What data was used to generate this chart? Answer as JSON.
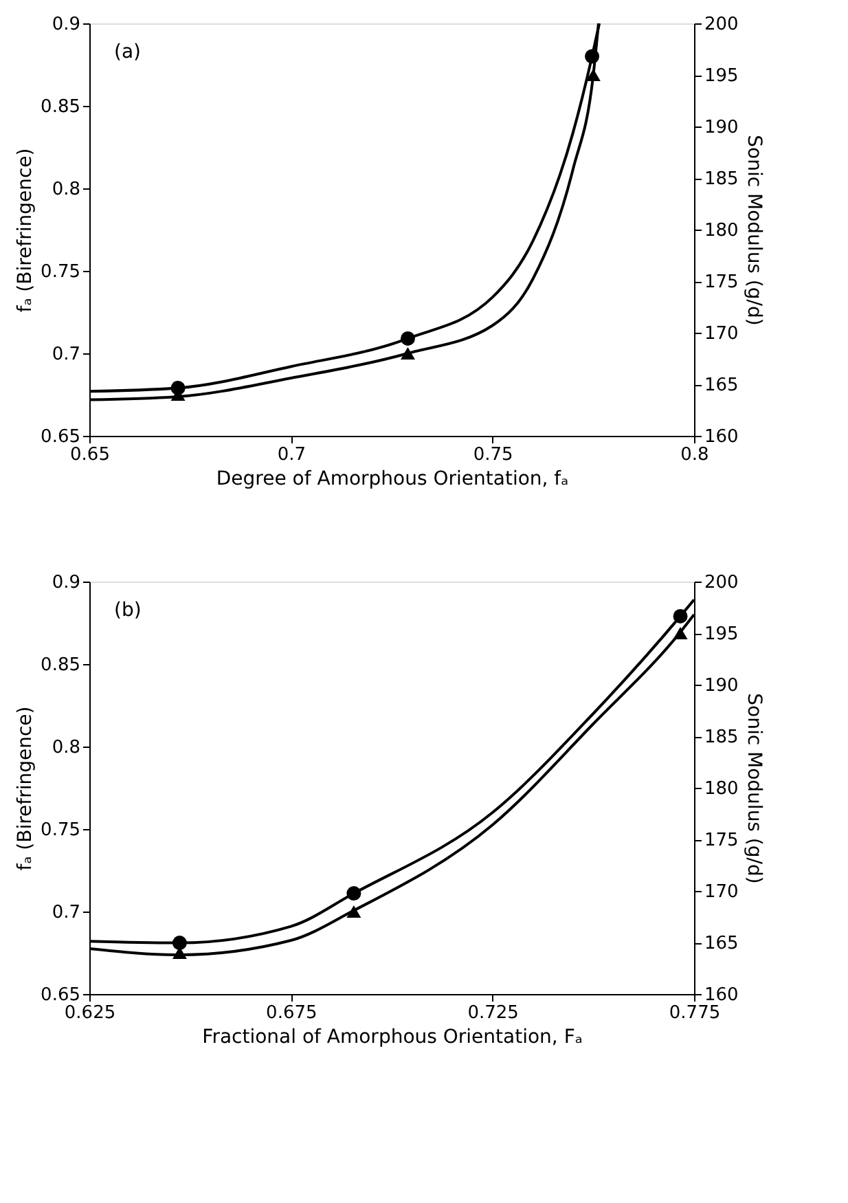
{
  "chart_data": [
    {
      "type": "line",
      "xlabel": "Degree of Amorphous Orientation, fₐ",
      "ylabel": "fₐ (Birefringence)",
      "y2label": "Sonic Modulus (g/d)",
      "annotations": [
        "(a)"
      ],
      "xlim": [
        0.65,
        0.8
      ],
      "xticks": [
        0.65,
        0.7,
        0.75,
        0.8
      ],
      "ylim": [
        0.65,
        0.9
      ],
      "yticks": [
        0.65,
        0.7,
        0.75,
        0.8,
        0.85,
        0.9
      ],
      "y2lim": [
        160,
        200
      ],
      "y2ticks": [
        160,
        165,
        170,
        175,
        180,
        185,
        190,
        195,
        200
      ],
      "grid": false,
      "series": [
        {
          "color": "#000000",
          "marker": "none",
          "x": [
            0.65,
            0.672,
            0.7,
            0.729,
            0.75,
            0.76,
            0.77,
            0.7747,
            0.7765
          ],
          "values": [
            0.677,
            0.679,
            0.692,
            0.709,
            0.734,
            0.768,
            0.834,
            0.88,
            0.9
          ]
        },
        {
          "axis": "y2",
          "color": "#000000",
          "marker": "none",
          "x": [
            0.65,
            0.672,
            0.7,
            0.729,
            0.75,
            0.76,
            0.77,
            0.775,
            0.7763
          ],
          "values": [
            163.5,
            163.8,
            165.6,
            168,
            170.7,
            175.2,
            185.9,
            195,
            200
          ]
        },
        {
          "type": "scatter",
          "color": "#000000",
          "marker": "circle",
          "x": [
            0.672,
            0.729,
            0.7747
          ],
          "values": [
            0.679,
            0.709,
            0.88
          ]
        },
        {
          "type": "scatter",
          "axis": "y2",
          "color": "#000000",
          "marker": "triangle",
          "x": [
            0.672,
            0.729,
            0.775
          ],
          "values": [
            164,
            168,
            195
          ]
        }
      ]
    },
    {
      "type": "line",
      "xlabel": "Fractional of Amorphous Orientation, Fₐ",
      "ylabel": "fₐ (Birefringence)",
      "y2label": "Sonic Modulus (g/d)",
      "annotations": [
        "(b)"
      ],
      "xlim": [
        0.625,
        0.775
      ],
      "xticks": [
        0.625,
        0.675,
        0.725,
        0.775
      ],
      "ylim": [
        0.65,
        0.9
      ],
      "yticks": [
        0.65,
        0.7,
        0.75,
        0.8,
        0.85,
        0.9
      ],
      "y2lim": [
        160,
        200
      ],
      "y2ticks": [
        160,
        165,
        170,
        175,
        180,
        185,
        190,
        195,
        200
      ],
      "grid": false,
      "series": [
        {
          "color": "#000000",
          "marker": "none",
          "x": [
            0.625,
            0.6474,
            0.675,
            0.6906,
            0.725,
            0.75,
            0.7716,
            0.775
          ],
          "values": [
            0.682,
            0.681,
            0.691,
            0.711,
            0.76,
            0.82,
            0.879,
            0.889
          ]
        },
        {
          "axis": "y2",
          "color": "#000000",
          "marker": "none",
          "x": [
            0.625,
            0.6474,
            0.675,
            0.6906,
            0.725,
            0.75,
            0.7716,
            0.775
          ],
          "values": [
            164.4,
            163.8,
            165.2,
            168.1,
            176.4,
            186.2,
            195.1,
            196.8
          ]
        },
        {
          "type": "scatter",
          "color": "#000000",
          "marker": "circle",
          "x": [
            0.6474,
            0.6906,
            0.7716
          ],
          "values": [
            0.681,
            0.711,
            0.879
          ]
        },
        {
          "type": "scatter",
          "axis": "y2",
          "color": "#000000",
          "marker": "triangle",
          "x": [
            0.6474,
            0.6906,
            0.7716
          ],
          "values": [
            164,
            168,
            195
          ]
        }
      ]
    }
  ]
}
